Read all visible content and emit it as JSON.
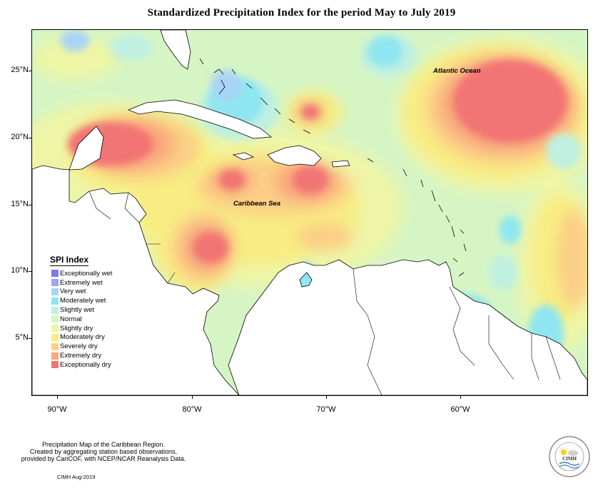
{
  "title": "Standardized Precipitation Index for the period May to July 2019",
  "axes": {
    "lat_ticks": [
      "25°N",
      "20°N",
      "15°N",
      "10°N",
      "5°N"
    ],
    "lon_ticks": [
      "90°W",
      "80°W",
      "70°W",
      "60°W"
    ]
  },
  "map_labels": {
    "atlantic": "Atlantic Ocean",
    "caribbean": "Caribbean Sea"
  },
  "legend": {
    "title": "SPI Index",
    "items": [
      {
        "label": "Exceptionally wet",
        "color": "#7b7bee"
      },
      {
        "label": "Extremely wet",
        "color": "#98a8f2"
      },
      {
        "label": "Very wet",
        "color": "#a8d4f6"
      },
      {
        "label": "Moderately wet",
        "color": "#8ee6f0"
      },
      {
        "label": "Slightly wet",
        "color": "#bff0e0"
      },
      {
        "label": "Normal",
        "color": "#d6f5c4"
      },
      {
        "label": "Slightly dry",
        "color": "#eef5a6"
      },
      {
        "label": "Moderately dry",
        "color": "#f8ec82"
      },
      {
        "label": "Severely dry",
        "color": "#fbcf86"
      },
      {
        "label": "Extremely dry",
        "color": "#f8a87c"
      },
      {
        "label": "Exceptionally dry",
        "color": "#f27474"
      }
    ]
  },
  "footer": {
    "line1": "Precipitation Map of the Caribbean Region.",
    "line2": "Created by aggregating station based observations,",
    "line3": "provided by CariCOF, with NCEP/NCAR Reanalysis Data.",
    "credit": "CIMH Aug-2019"
  },
  "logo": {
    "text": "CIMH"
  }
}
